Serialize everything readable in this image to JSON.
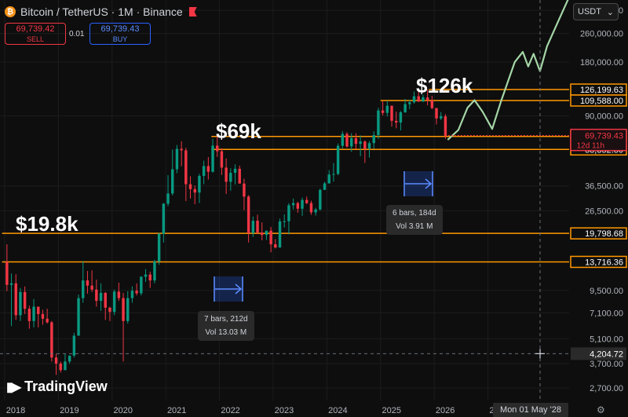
{
  "header": {
    "title": "Bitcoin / TetherUS · 1M · Binance",
    "coin_icon": "bitcoin-icon",
    "sell_price": "69,739.42",
    "sell_label": "SELL",
    "spread": "0.01",
    "buy_price": "69,739.43",
    "buy_label": "BUY",
    "currency": "USDT",
    "currency_icon": "chevron-down-icon"
  },
  "colors": {
    "background": "#0e0e0e",
    "up": "#089981",
    "down": "#f23645",
    "level": "#ff9800",
    "projection": "#a5d6a7",
    "price_badge": "#f23645"
  },
  "annotations": {
    "peak_2021": "$69k",
    "peak_2025": "$126k",
    "low_2018": "$19.8k",
    "measure_2021": {
      "line1": "7 bars, 212d",
      "line2": "Vol 13.03 M"
    },
    "measure_2025": {
      "line1": "6 bars, 184d",
      "line2": "Vol 3.91 M"
    }
  },
  "crosshair": {
    "date": "Mon 01 May '28",
    "price": "4,204.72"
  },
  "logo": "TradingView",
  "chart_data": {
    "type": "candlestick",
    "symbol": "BTCUSDT",
    "interval": "1M",
    "y_scale": "log",
    "ylim": [
      2300,
      400000
    ],
    "xlim": [
      2018,
      2028.6
    ],
    "x_ticks": [
      "2018",
      "2019",
      "2020",
      "2021",
      "2022",
      "2023",
      "2024",
      "2025",
      "2026",
      "2027"
    ],
    "y_ticks": [
      {
        "v": 350000,
        "label": "350,000.00"
      },
      {
        "v": 260000,
        "label": "260,000.00"
      },
      {
        "v": 180000,
        "label": "180,000.00"
      },
      {
        "v": 90000,
        "label": "90,000.00"
      },
      {
        "v": 36500,
        "label": "36,500.00"
      },
      {
        "v": 26500,
        "label": "26,500.00"
      },
      {
        "v": 9500,
        "label": "9,500.00"
      },
      {
        "v": 7100,
        "label": "7,100.00"
      },
      {
        "v": 5100,
        "label": "5,100.00"
      },
      {
        "v": 3700,
        "label": "3,700.00"
      },
      {
        "v": 2700,
        "label": "2,700.00"
      }
    ],
    "levels": [
      {
        "v": 126199.63,
        "label": "126,199.63",
        "from": 2025.9
      },
      {
        "v": 109588.0,
        "label": "109,588.00",
        "from": 2025.0
      },
      {
        "v": 69000.0,
        "label": "69,000.00",
        "from": 2021.85
      },
      {
        "v": 58352.8,
        "label": "58,352.80",
        "from": 2021.85
      },
      {
        "v": 19798.68,
        "label": "19,798.68",
        "from": 2017.95
      },
      {
        "v": 13716.36,
        "label": "13,716.36",
        "from": 2017.95
      }
    ],
    "current_price": {
      "v": 69739.43,
      "label": "69,739.43",
      "sub": "12d 11h"
    },
    "crosshair_price": 4204.72,
    "candles_ohlc": [
      [
        13700,
        17200,
        9400,
        10200
      ],
      [
        10200,
        11800,
        6000,
        10400
      ],
      [
        10400,
        11700,
        6500,
        6900
      ],
      [
        6900,
        9800,
        6400,
        9300
      ],
      [
        9300,
        10000,
        7000,
        7500
      ],
      [
        7500,
        7800,
        5800,
        6400
      ],
      [
        6400,
        8500,
        5900,
        7700
      ],
      [
        7700,
        7700,
        5900,
        7000
      ],
      [
        7000,
        7400,
        6100,
        6600
      ],
      [
        6600,
        7500,
        6200,
        6300
      ],
      [
        6300,
        6400,
        3800,
        4000
      ],
      [
        4000,
        4200,
        3200,
        3700
      ],
      [
        3700,
        3800,
        3300,
        3400
      ],
      [
        3400,
        4200,
        3400,
        3800
      ],
      [
        3800,
        4100,
        3700,
        4100
      ],
      [
        4100,
        5500,
        4000,
        5300
      ],
      [
        5300,
        9000,
        5300,
        8600
      ],
      [
        8600,
        13900,
        8100,
        10800
      ],
      [
        10800,
        12200,
        9100,
        10100
      ],
      [
        10100,
        12300,
        9300,
        9600
      ],
      [
        9600,
        10900,
        7700,
        8300
      ],
      [
        8300,
        10400,
        7300,
        9200
      ],
      [
        9200,
        9300,
        6500,
        7600
      ],
      [
        7600,
        7700,
        6400,
        7200
      ],
      [
        7200,
        9600,
        6900,
        9350
      ],
      [
        9350,
        10500,
        8300,
        8600
      ],
      [
        8600,
        9200,
        3800,
        6400
      ],
      [
        6400,
        9400,
        6200,
        8600
      ],
      [
        8600,
        10000,
        8100,
        9450
      ],
      [
        9450,
        10400,
        8900,
        9150
      ],
      [
        9150,
        11400,
        8900,
        11330
      ],
      [
        11330,
        12500,
        10600,
        11650
      ],
      [
        11650,
        12100,
        9800,
        10800
      ],
      [
        10800,
        14100,
        10400,
        13800
      ],
      [
        13800,
        19900,
        13200,
        19700
      ],
      [
        19700,
        29300,
        17600,
        29000
      ],
      [
        29000,
        41900,
        28100,
        33100
      ],
      [
        33100,
        58300,
        32300,
        45200
      ],
      [
        45200,
        61800,
        43000,
        58800
      ],
      [
        58800,
        64900,
        47000,
        57700
      ],
      [
        57700,
        59600,
        30000,
        37300
      ],
      [
        37300,
        41300,
        31000,
        35000
      ],
      [
        35000,
        36600,
        28800,
        33500
      ],
      [
        33500,
        42600,
        29300,
        41500
      ],
      [
        41500,
        50500,
        37300,
        47100
      ],
      [
        47100,
        52900,
        39600,
        43800
      ],
      [
        43800,
        66900,
        43300,
        61300
      ],
      [
        61300,
        69000,
        53000,
        57000
      ],
      [
        57000,
        59200,
        42000,
        46200
      ],
      [
        46200,
        52000,
        32900,
        38500
      ],
      [
        38500,
        45800,
        34300,
        43200
      ],
      [
        43200,
        48200,
        37200,
        45500
      ],
      [
        45500,
        47400,
        37700,
        37600
      ],
      [
        37600,
        40000,
        26700,
        31800
      ],
      [
        31800,
        32400,
        17600,
        19900
      ],
      [
        19900,
        24600,
        18900,
        23300
      ],
      [
        23300,
        25200,
        19600,
        20000
      ],
      [
        20000,
        22800,
        18100,
        19400
      ],
      [
        19400,
        20500,
        18200,
        20500
      ],
      [
        20500,
        21500,
        15500,
        17200
      ],
      [
        17200,
        18400,
        16300,
        16500
      ],
      [
        16500,
        23950,
        16500,
        23100
      ],
      [
        23100,
        25250,
        21350,
        23150
      ],
      [
        23150,
        29200,
        19550,
        28450
      ],
      [
        28450,
        31000,
        26950,
        29250
      ],
      [
        29250,
        29800,
        25800,
        27200
      ],
      [
        27200,
        31400,
        24800,
        30450
      ],
      [
        30450,
        31800,
        28850,
        29250
      ],
      [
        29250,
        30150,
        25150,
        25950
      ],
      [
        25950,
        27500,
        24900,
        26950
      ],
      [
        26950,
        35200,
        26550,
        34650
      ],
      [
        34650,
        38450,
        34750,
        37700
      ],
      [
        37700,
        44700,
        37600,
        42250
      ],
      [
        42250,
        48950,
        38550,
        42550
      ],
      [
        42550,
        63000,
        41900,
        61150
      ],
      [
        61150,
        73800,
        59000,
        71300
      ],
      [
        71300,
        72800,
        59800,
        60650
      ],
      [
        60650,
        71950,
        56550,
        67500
      ],
      [
        67500,
        71950,
        58600,
        62700
      ],
      [
        62700,
        70000,
        53500,
        64650
      ],
      [
        64650,
        65600,
        49050,
        58950
      ],
      [
        58950,
        64950,
        52550,
        63300
      ],
      [
        63300,
        73600,
        58850,
        70200
      ],
      [
        70200,
        99800,
        66800,
        96400
      ],
      [
        96400,
        108350,
        90500,
        93450
      ],
      [
        93450,
        109600,
        89250,
        102400
      ],
      [
        102400,
        102750,
        78250,
        84350
      ],
      [
        84350,
        95000,
        76600,
        82550
      ],
      [
        82550,
        95750,
        74600,
        94200
      ],
      [
        94200,
        111950,
        93400,
        104600
      ],
      [
        104600,
        110500,
        98200,
        107100
      ],
      [
        107100,
        123200,
        105200,
        115750
      ],
      [
        115750,
        124450,
        107350,
        108250
      ],
      [
        108250,
        117900,
        107250,
        114050
      ],
      [
        114050,
        126200,
        103000,
        109600
      ],
      [
        109600,
        116400,
        98000,
        99450
      ],
      [
        99450,
        99500,
        80500,
        87000
      ],
      [
        87000,
        94500,
        85200,
        89400
      ],
      [
        89400,
        92000,
        67000,
        69739
      ]
    ],
    "projection": [
      [
        2026.25,
        66000
      ],
      [
        2026.45,
        75000
      ],
      [
        2026.62,
        100000
      ],
      [
        2026.75,
        110000
      ],
      [
        2026.9,
        95000
      ],
      [
        2027.08,
        76000
      ],
      [
        2027.25,
        110000
      ],
      [
        2027.5,
        180000
      ],
      [
        2027.65,
        205000
      ],
      [
        2027.75,
        170000
      ],
      [
        2027.85,
        200000
      ],
      [
        2027.97,
        160000
      ],
      [
        2028.1,
        220000
      ],
      [
        2028.3,
        300000
      ],
      [
        2028.52,
        420000
      ]
    ]
  }
}
